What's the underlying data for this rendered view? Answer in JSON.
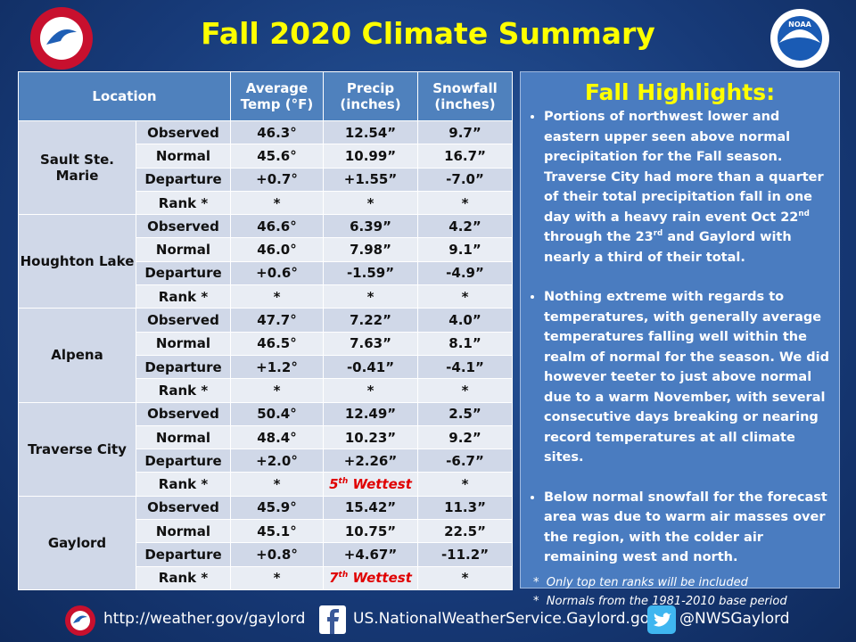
{
  "header": {
    "title": "Fall 2020 Climate Summary",
    "noaa_logo": "NOAA"
  },
  "table": {
    "columns": [
      "Location",
      "Average Temp (°F)",
      "Precip (inches)",
      "Snowfall (inches)"
    ],
    "locations": [
      {
        "name": "Sault Ste. Marie",
        "rows": [
          {
            "label": "Observed",
            "temp": "46.3°",
            "precip": "12.54”",
            "snow": "9.7”"
          },
          {
            "label": "Normal",
            "temp": "45.6°",
            "precip": "10.99”",
            "snow": "16.7”"
          },
          {
            "label": "Departure",
            "temp": "+0.7°",
            "precip": "+1.55”",
            "snow": "-7.0”"
          },
          {
            "label": "Rank *",
            "temp": "*",
            "precip": "*",
            "snow": "*"
          }
        ]
      },
      {
        "name": "Houghton Lake",
        "rows": [
          {
            "label": "Observed",
            "temp": "46.6°",
            "precip": "6.39”",
            "snow": "4.2”"
          },
          {
            "label": "Normal",
            "temp": "46.0°",
            "precip": "7.98”",
            "snow": "9.1”"
          },
          {
            "label": "Departure",
            "temp": "+0.6°",
            "precip": "-1.59”",
            "snow": "-4.9”"
          },
          {
            "label": "Rank *",
            "temp": "*",
            "precip": "*",
            "snow": "*"
          }
        ]
      },
      {
        "name": "Alpena",
        "rows": [
          {
            "label": "Observed",
            "temp": "47.7°",
            "precip": "7.22”",
            "snow": "4.0”"
          },
          {
            "label": "Normal",
            "temp": "46.5°",
            "precip": "7.63”",
            "snow": "8.1”"
          },
          {
            "label": "Departure",
            "temp": "+1.2°",
            "precip": "-0.41”",
            "snow": "-4.1”"
          },
          {
            "label": "Rank *",
            "temp": "*",
            "precip": "*",
            "snow": "*"
          }
        ]
      },
      {
        "name": "Traverse City",
        "rows": [
          {
            "label": "Observed",
            "temp": "50.4°",
            "precip": "12.49”",
            "snow": "2.5”"
          },
          {
            "label": "Normal",
            "temp": "48.4°",
            "precip": "10.23”",
            "snow": "9.2”"
          },
          {
            "label": "Departure",
            "temp": "+2.0°",
            "precip": "+2.26”",
            "snow": "-6.7”"
          },
          {
            "label": "Rank *",
            "temp": "*",
            "precip": {
              "rank": "5",
              "suffix": "th",
              "word": "Wettest"
            },
            "snow": "*"
          }
        ]
      },
      {
        "name": "Gaylord",
        "rows": [
          {
            "label": "Observed",
            "temp": "45.9°",
            "precip": "15.42”",
            "snow": "11.3”"
          },
          {
            "label": "Normal",
            "temp": "45.1°",
            "precip": "10.75”",
            "snow": "22.5”"
          },
          {
            "label": "Departure",
            "temp": "+0.8°",
            "precip": "+4.67”",
            "snow": "-11.2”"
          },
          {
            "label": "Rank *",
            "temp": "*",
            "precip": {
              "rank": "7",
              "suffix": "th",
              "word": "Wettest"
            },
            "snow": "*"
          }
        ]
      }
    ]
  },
  "highlights": {
    "title": "Fall Highlights:",
    "bullets": [
      [
        "Portions of northwest lower and eastern upper seen above normal precipitation for the Fall season. Traverse City had more than a quarter of their total precipitation fall in one day with a heavy rain event  Oct 22",
        "nd",
        " through the 23",
        "rd",
        " and Gaylord with nearly a third of their total."
      ],
      [
        "Nothing extreme with regards to temperatures, with generally average temperatures falling well within the realm of normal for the season. We did however teeter to just above normal due to a warm November, with several consecutive days breaking or nearing record temperatures at all climate sites."
      ],
      [
        "Below normal snowfall for the forecast area was due to warm air masses over the region, with the colder air remaining west and north."
      ]
    ],
    "notes": [
      "Only top ten ranks will be included",
      "Normals from the 1981-2010 base period"
    ]
  },
  "footer": {
    "website": "http://weather.gov/gaylord",
    "facebook": "US.NationalWeatherService.Gaylord.gov",
    "twitter": "@NWSGaylord"
  }
}
